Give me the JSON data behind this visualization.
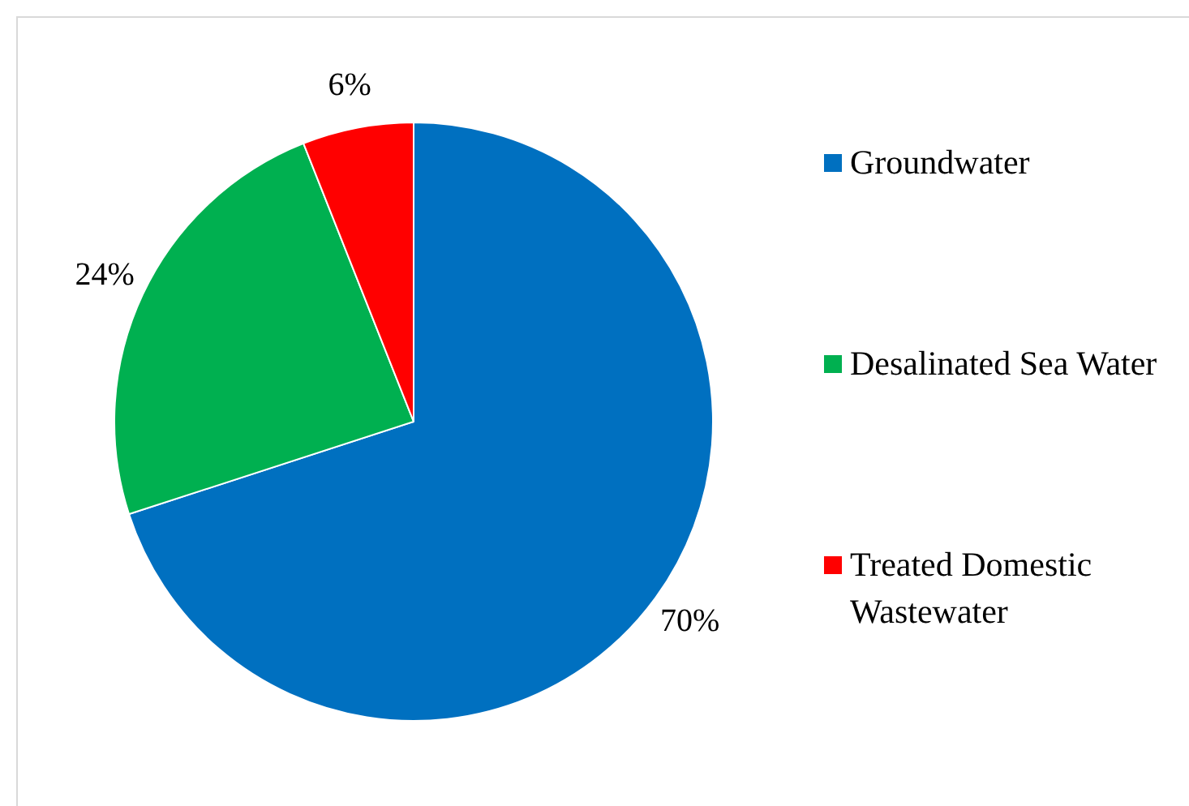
{
  "chart_data": {
    "type": "pie",
    "categories": [
      "Groundwater",
      "Desalinated Sea Water",
      "Treated Domestic Wastewater"
    ],
    "values": [
      70,
      24,
      6
    ],
    "colors": [
      "#0070c0",
      "#00b050",
      "#ff0000"
    ],
    "value_labels": [
      "70%",
      "24%",
      "6%"
    ],
    "legend": "right"
  }
}
